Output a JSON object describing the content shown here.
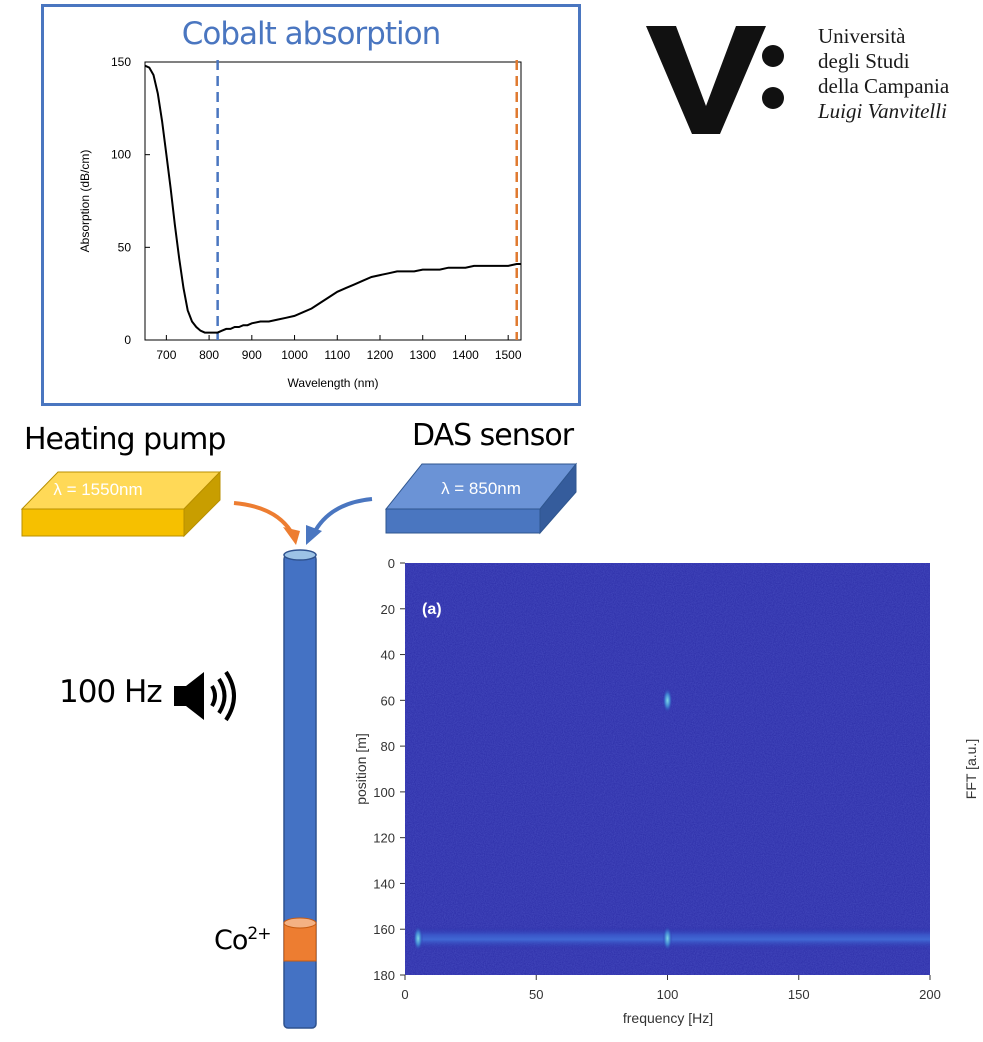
{
  "absorption_panel": {
    "title": "Cobalt absorption",
    "chart_data": {
      "type": "line",
      "xlabel": "Wavelength (nm)",
      "ylabel": "Absorption (dB/cm)",
      "xlim": [
        650,
        1530
      ],
      "ylim": [
        0,
        150
      ],
      "x_ticks": [
        700,
        800,
        900,
        1000,
        1100,
        1200,
        1300,
        1400,
        1500
      ],
      "y_ticks": [
        0,
        50,
        100,
        150
      ],
      "series": [
        {
          "x": [
            650,
            660,
            670,
            680,
            690,
            700,
            710,
            720,
            730,
            740,
            750,
            760,
            770,
            780,
            790,
            800,
            810,
            820,
            830,
            840,
            850,
            860,
            870,
            880,
            890,
            900,
            920,
            940,
            960,
            980,
            1000,
            1020,
            1040,
            1060,
            1080,
            1100,
            1120,
            1140,
            1160,
            1180,
            1200,
            1220,
            1240,
            1260,
            1280,
            1300,
            1320,
            1340,
            1360,
            1380,
            1400,
            1420,
            1440,
            1460,
            1480,
            1500,
            1520,
            1530
          ],
          "y": [
            148,
            147,
            143,
            133,
            118,
            100,
            82,
            62,
            44,
            28,
            16,
            10,
            7,
            5,
            4,
            4,
            4,
            4,
            5,
            6,
            6,
            7,
            7,
            8,
            8,
            9,
            10,
            10,
            11,
            12,
            13,
            15,
            17,
            20,
            23,
            26,
            28,
            30,
            32,
            34,
            35,
            36,
            37,
            37,
            37,
            38,
            38,
            38,
            39,
            39,
            39,
            40,
            40,
            40,
            40,
            40,
            41,
            41
          ]
        }
      ],
      "markers": [
        {
          "x": 820,
          "color": "#4a76c0",
          "style": "dashed"
        },
        {
          "x": 1520,
          "color": "#e07a30",
          "style": "dashed"
        }
      ]
    }
  },
  "logo": {
    "line1": "Università",
    "line2": "degli Studi",
    "line3": "della Campania",
    "line4": "Luigi Vanvitelli"
  },
  "heating_pump": {
    "title": "Heating pump",
    "wavelength": "λ = 1550nm",
    "color": "#f6c000"
  },
  "das_sensor": {
    "title": "DAS sensor",
    "wavelength": "λ = 850nm",
    "color": "#4a76c0"
  },
  "fiber": {
    "color": "#4472c4",
    "dopant_color": "#ed7d31",
    "dopant_label_base": "Co",
    "dopant_label_sup": "2+"
  },
  "sound": {
    "label": "100 Hz",
    "icon": "speaker-icon"
  },
  "spectrogram": {
    "panel_label": "(a)",
    "colorbar_label": "FFT [a.u.]",
    "chart_data": {
      "type": "heatmap",
      "xlabel": "frequency [Hz]",
      "ylabel": "position [m]",
      "xlim": [
        0,
        200
      ],
      "ylim": [
        0,
        180
      ],
      "x_ticks": [
        0,
        50,
        100,
        150,
        200
      ],
      "y_ticks": [
        0,
        20,
        40,
        60,
        80,
        100,
        120,
        140,
        160,
        180
      ],
      "background_color": "#2a2ba6",
      "features": [
        {
          "kind": "hotspot",
          "frequency": 100,
          "position": 60
        },
        {
          "kind": "band",
          "position": 164,
          "frequency_range": [
            5,
            200
          ]
        },
        {
          "kind": "hotspot",
          "frequency": 5,
          "position": 164
        },
        {
          "kind": "hotspot",
          "frequency": 100,
          "position": 164
        }
      ]
    }
  }
}
